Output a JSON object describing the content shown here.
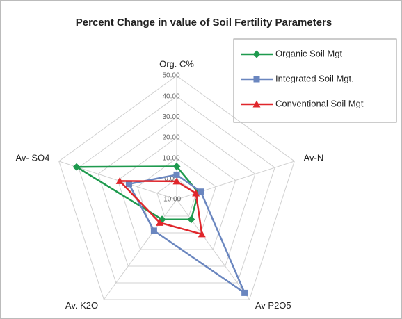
{
  "chart_data": {
    "type": "radar",
    "title": "Percent Change in value of Soil Fertility Parameters",
    "categories": [
      "Org. C%",
      "Av-N",
      "Av P2O5",
      "Av. K2O",
      "Av- SO4"
    ],
    "ylim": [
      -10,
      50
    ],
    "yticks": [
      {
        "value": -10,
        "label": "-10.00"
      },
      {
        "value": 0,
        "label": "0.00"
      },
      {
        "value": 10,
        "label": "10.00"
      },
      {
        "value": 20,
        "label": "20.00"
      },
      {
        "value": 30,
        "label": "30.00"
      },
      {
        "value": 40,
        "label": "40.00"
      },
      {
        "value": 50,
        "label": "50.00"
      }
    ],
    "grid": true,
    "legend": "top-right",
    "series": [
      {
        "name": "Organic Soil Mgt",
        "color": "#1e9a4e",
        "marker": "diamond",
        "values": [
          6,
          1,
          2,
          2,
          41
        ]
      },
      {
        "name": "Integrated Soil Mgt.",
        "color": "#6a86bf",
        "marker": "square",
        "values": [
          2,
          2.3,
          46,
          8.7,
          14.3
        ]
      },
      {
        "name": "Conventional Soil Mgt",
        "color": "#e0262b",
        "marker": "triangle",
        "values": [
          -1.2,
          -0.2,
          10.8,
          3.9,
          19
        ]
      }
    ]
  }
}
